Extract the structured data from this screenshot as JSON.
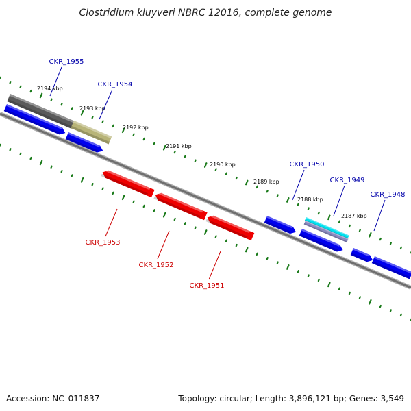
{
  "title": "Clostridium kluyveri NBRC 12016, complete genome",
  "footer": {
    "accession": "Accession: NC_011837",
    "summary": "Topology: circular; Length: 3,896,121 bp; Genes: 3,549"
  },
  "colors": {
    "forward_gene": "#0000ee",
    "reverse_gene": "#ee0000",
    "backbone": "#808080",
    "tick": "#1a7a1a",
    "gene_label_forward": "#0000aa",
    "gene_label_reverse": "#cc0000",
    "dark_feature": "#5a5a5a",
    "olive_feature": "#b8b478",
    "cyan_feature": "#00e0ee"
  },
  "ticks": [
    {
      "label": "2194 kbp"
    },
    {
      "label": "2193 kbp"
    },
    {
      "label": "2192 kbp"
    },
    {
      "label": "2191 kbp"
    },
    {
      "label": "2190 kbp"
    },
    {
      "label": "2189 kbp"
    },
    {
      "label": "2188 kbp"
    },
    {
      "label": "2187 kbp"
    }
  ],
  "genes": [
    {
      "name": "CKR_1955",
      "strand": "forward"
    },
    {
      "name": "CKR_1954",
      "strand": "forward"
    },
    {
      "name": "CKR_1953",
      "strand": "reverse"
    },
    {
      "name": "CKR_1952",
      "strand": "reverse"
    },
    {
      "name": "CKR_1951",
      "strand": "reverse"
    },
    {
      "name": "CKR_1950",
      "strand": "forward"
    },
    {
      "name": "CKR_1949",
      "strand": "forward"
    },
    {
      "name": "CKR_1948",
      "strand": "forward"
    }
  ]
}
